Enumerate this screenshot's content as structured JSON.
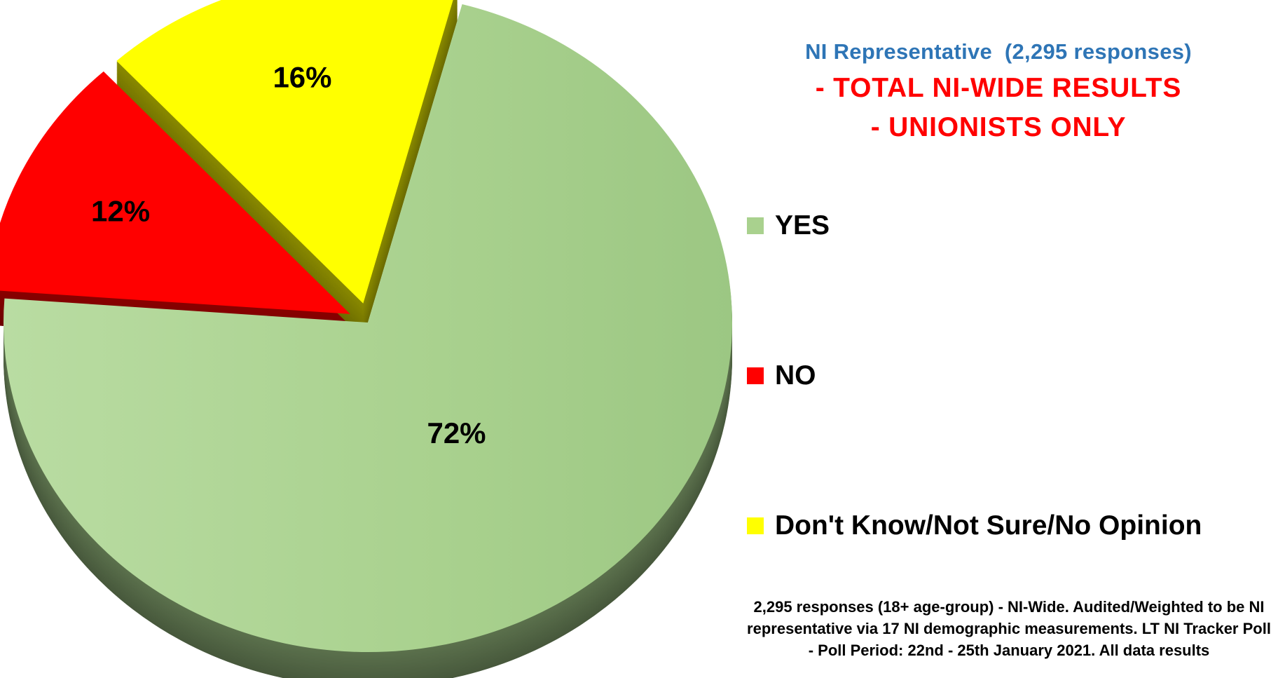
{
  "chart_data": {
    "type": "pie",
    "title_lines": [
      "- TOTAL NI-WIDE RESULTS",
      "- UNIONISTS ONLY"
    ],
    "subtitle": "NI Representative  (2,295 responses)",
    "slices": [
      {
        "name": "YES",
        "value": 72,
        "label": "72%",
        "color": "#a9d18e"
      },
      {
        "name": "NO",
        "value": 12,
        "label": "12%",
        "color": "#ff0000",
        "exploded": true
      },
      {
        "name": "Don't Know/Not Sure/No Opinion",
        "value": 16,
        "label": "16%",
        "color": "#ffff00",
        "exploded": true
      }
    ],
    "legend_position": "right",
    "three_d": true
  },
  "colors": {
    "subtitle": "#2e75b6",
    "title": "#ff0000",
    "text": "#000000"
  },
  "footnote": "2,295 responses (18+ age-group) - NI-Wide. Audited/Weighted to be NI representative via 17 NI demographic measurements. LT NI Tracker Poll - Poll Period: 22nd - 25th January 2021. All data results"
}
